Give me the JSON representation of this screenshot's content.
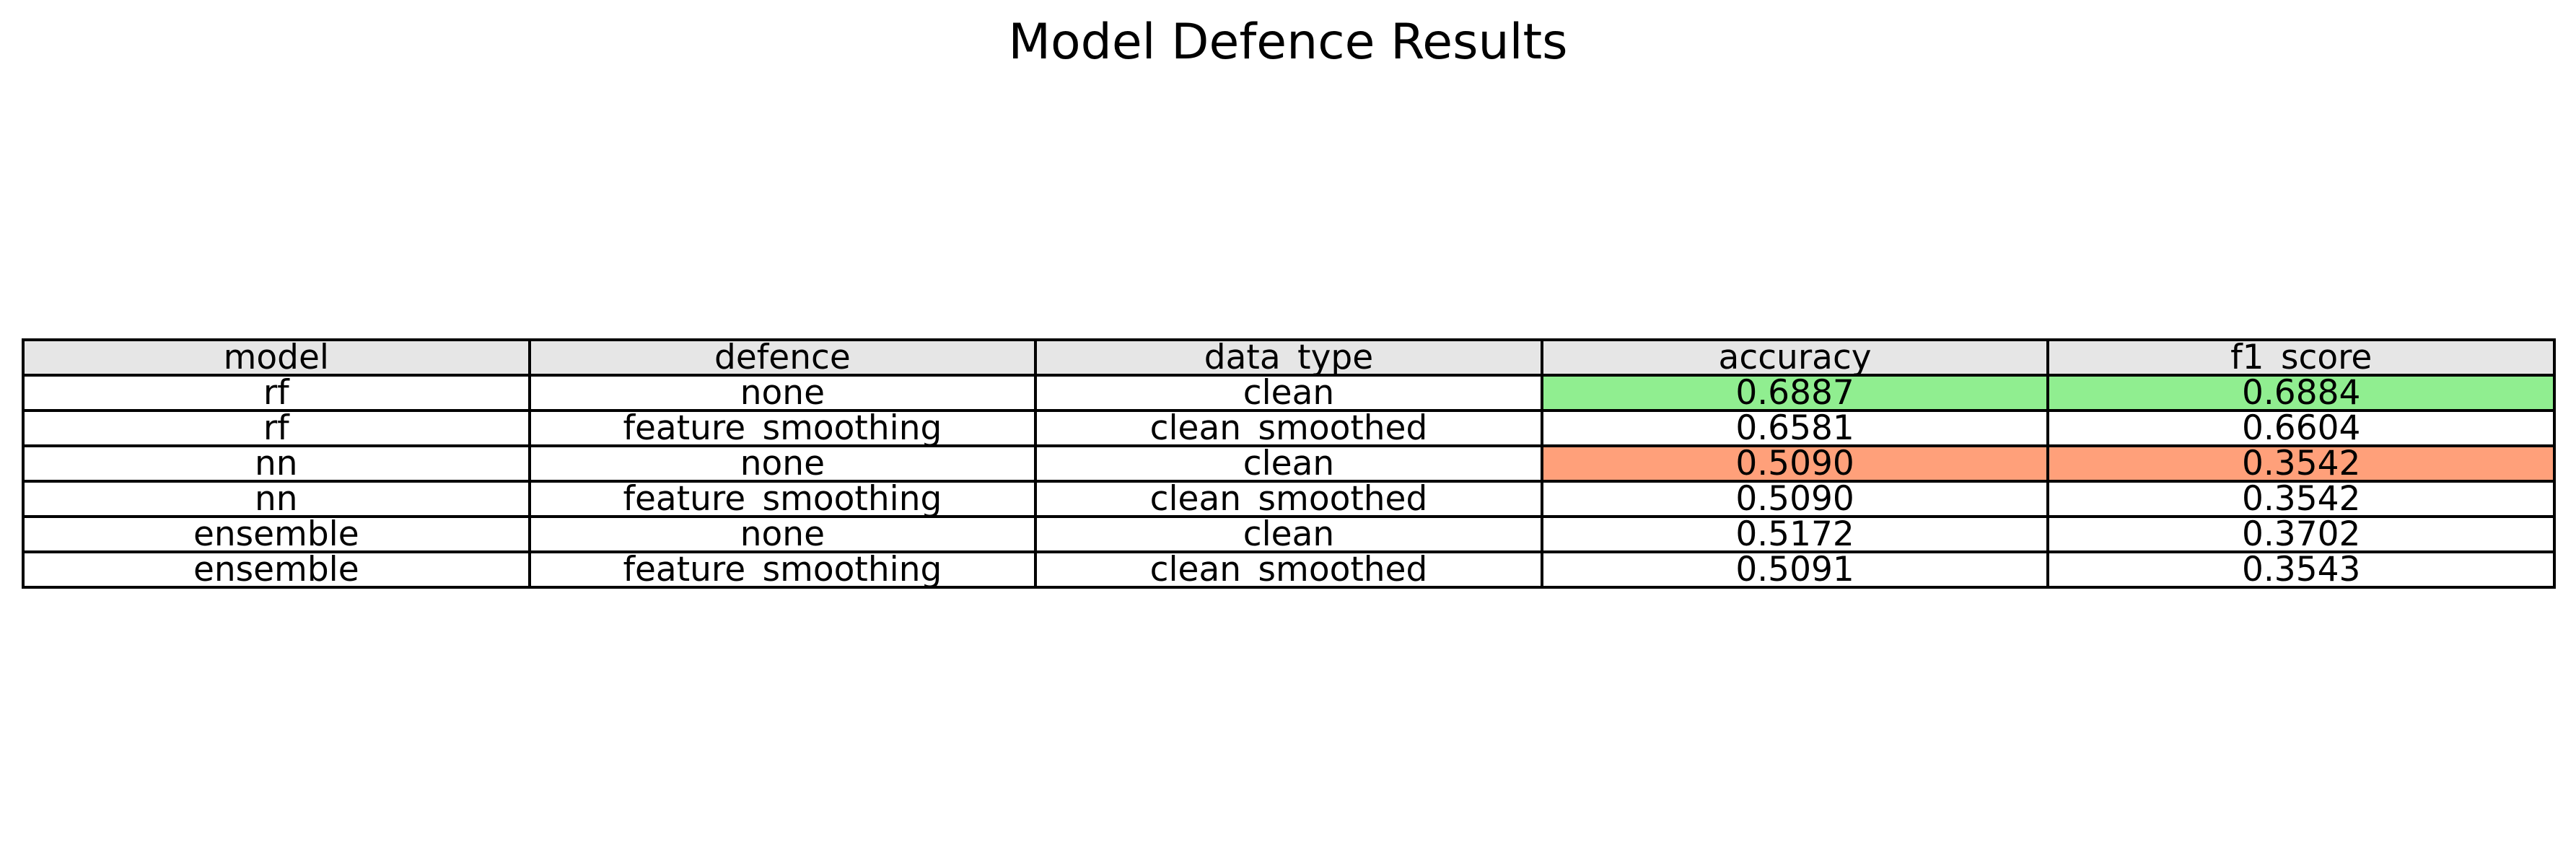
{
  "chart_data": {
    "type": "table",
    "title": "Model Defence Results",
    "columns": [
      "model",
      "defence",
      "data_type",
      "accuracy",
      "f1_score"
    ],
    "rows": [
      [
        "rf",
        "none",
        "clean",
        "0.6887",
        "0.6884"
      ],
      [
        "rf",
        "feature_smoothing",
        "clean_smoothed",
        "0.6581",
        "0.6604"
      ],
      [
        "nn",
        "none",
        "clean",
        "0.5090",
        "0.3542"
      ],
      [
        "nn",
        "feature_smoothing",
        "clean_smoothed",
        "0.5090",
        "0.3542"
      ],
      [
        "ensemble",
        "none",
        "clean",
        "0.5172",
        "0.3702"
      ],
      [
        "ensemble",
        "feature_smoothing",
        "clean_smoothed",
        "0.5091",
        "0.3543"
      ]
    ],
    "highlights": [
      {
        "row": 0,
        "columns": [
          3,
          4
        ],
        "color": "#90ee90",
        "meaning": "best"
      },
      {
        "row": 2,
        "columns": [
          3,
          4
        ],
        "color": "#ffa07a",
        "meaning": "worst"
      }
    ],
    "header_color": "#e6e6e6"
  }
}
